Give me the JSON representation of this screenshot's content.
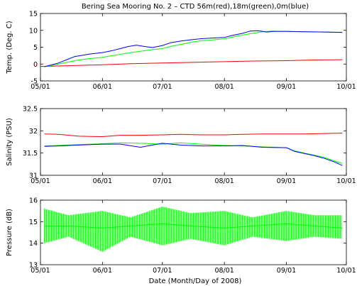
{
  "chart_data": [
    {
      "type": "line",
      "title": "Bering Sea Mooring No. 2 – CTD 56m(red),18m(green),0m(blue)",
      "ylabel": "Temp. (Deg. C)",
      "xlabel": "",
      "xlim": [
        "05/01",
        "10/01"
      ],
      "ylim": [
        -5,
        15
      ],
      "x_ticks": [
        "05/01",
        "06/01",
        "07/01",
        "08/01",
        "09/01",
        "10/01"
      ],
      "y_ticks": [
        "-5",
        "0",
        "5",
        "10",
        "15"
      ],
      "grid": false,
      "series": [
        {
          "color": "#ff0000",
          "x": [
            "05/01",
            "05/15",
            "06/01",
            "06/15",
            "07/01",
            "07/15",
            "08/01",
            "08/15",
            "09/01",
            "09/15",
            "09/29"
          ],
          "y": [
            -0.7,
            -0.5,
            -0.2,
            0.1,
            0.3,
            0.5,
            0.7,
            0.9,
            1.0,
            1.2,
            1.3
          ]
        },
        {
          "color": "#00ff00",
          "x": [
            "05/03",
            "05/10",
            "05/15",
            "05/20",
            "05/25",
            "06/01",
            "06/05",
            "06/10",
            "06/15",
            "06/20",
            "06/25",
            "07/01",
            "07/05",
            "07/10",
            "07/15",
            "07/20",
            "07/25",
            "08/01",
            "08/05",
            "08/10",
            "08/15",
            "08/20",
            "08/25",
            "09/01",
            "09/10",
            "09/20",
            "09/29"
          ],
          "y": [
            -0.8,
            0.0,
            0.6,
            1.2,
            1.6,
            2.0,
            2.4,
            2.9,
            3.4,
            3.8,
            4.2,
            4.6,
            5.2,
            5.8,
            6.4,
            6.9,
            7.1,
            7.5,
            8.0,
            8.6,
            9.1,
            9.6,
            9.8,
            9.7,
            9.6,
            9.5,
            9.4
          ]
        },
        {
          "color": "#0000ff",
          "x": [
            "05/03",
            "05/10",
            "05/15",
            "05/18",
            "05/22",
            "05/26",
            "06/01",
            "06/06",
            "06/10",
            "06/14",
            "06/18",
            "06/22",
            "06/26",
            "07/01",
            "07/05",
            "07/10",
            "07/15",
            "07/20",
            "07/25",
            "08/01",
            "08/05",
            "08/10",
            "08/14",
            "08/18",
            "08/22",
            "08/26",
            "09/01",
            "09/10",
            "09/20",
            "09/29"
          ],
          "y": [
            -0.8,
            0.3,
            1.5,
            2.2,
            2.6,
            3.0,
            3.4,
            4.0,
            4.6,
            5.2,
            5.6,
            5.2,
            4.9,
            5.5,
            6.3,
            6.8,
            7.2,
            7.5,
            7.7,
            7.9,
            8.5,
            9.1,
            9.8,
            9.9,
            9.5,
            9.7,
            9.7,
            9.6,
            9.5,
            9.4
          ]
        }
      ]
    },
    {
      "type": "line",
      "ylabel": "Salinity (PSU)",
      "xlabel": "",
      "xlim": [
        "05/01",
        "10/01"
      ],
      "ylim": [
        31,
        32.5
      ],
      "x_ticks": [
        "05/01",
        "06/01",
        "07/01",
        "08/01",
        "09/01",
        "10/01"
      ],
      "y_ticks": [
        "31",
        "31.5",
        "32",
        "32.5"
      ],
      "grid": false,
      "series": [
        {
          "color": "#ff0000",
          "x": [
            "05/03",
            "05/10",
            "05/20",
            "06/01",
            "06/10",
            "06/20",
            "07/01",
            "07/10",
            "07/20",
            "08/01",
            "08/10",
            "08/20",
            "09/01",
            "09/10",
            "09/20",
            "09/29"
          ],
          "y": [
            31.93,
            31.92,
            31.88,
            31.87,
            31.9,
            31.9,
            31.91,
            31.92,
            31.91,
            31.91,
            31.92,
            31.93,
            31.93,
            31.93,
            31.94,
            31.95
          ]
        },
        {
          "color": "#00ff00",
          "x": [
            "05/03",
            "05/10",
            "05/20",
            "06/01",
            "06/10",
            "06/20",
            "07/01",
            "07/10",
            "07/20",
            "08/01",
            "08/10",
            "08/20",
            "09/01",
            "09/05",
            "09/10",
            "09/15",
            "09/20",
            "09/25",
            "09/29"
          ],
          "y": [
            31.66,
            31.67,
            31.69,
            31.71,
            31.73,
            31.72,
            31.7,
            31.73,
            31.7,
            31.67,
            31.66,
            31.64,
            31.62,
            31.55,
            31.5,
            31.45,
            31.4,
            31.32,
            31.27
          ]
        },
        {
          "color": "#0000ff",
          "x": [
            "05/03",
            "05/10",
            "05/20",
            "06/01",
            "06/10",
            "06/20",
            "07/01",
            "07/10",
            "07/20",
            "08/01",
            "08/10",
            "08/20",
            "09/01",
            "09/05",
            "09/10",
            "09/15",
            "09/20",
            "09/25",
            "09/29"
          ],
          "y": [
            31.65,
            31.66,
            31.68,
            31.7,
            31.7,
            31.63,
            31.72,
            31.68,
            31.66,
            31.66,
            31.67,
            31.63,
            31.62,
            31.54,
            31.49,
            31.44,
            31.38,
            31.3,
            31.22
          ]
        }
      ]
    },
    {
      "type": "line",
      "ylabel": "Pressure (dB)",
      "xlabel": "Date (Month/Day of 2008)",
      "xlim": [
        "05/01",
        "10/01"
      ],
      "ylim": [
        13,
        16
      ],
      "x_ticks": [
        "05/01",
        "06/01",
        "07/01",
        "08/01",
        "09/01",
        "10/01"
      ],
      "y_ticks": [
        "13",
        "14",
        "15",
        "16"
      ],
      "grid": false,
      "series": [
        {
          "color": "#00ff00",
          "x": [
            "05/03",
            "05/15",
            "06/01",
            "06/15",
            "07/01",
            "07/15",
            "08/01",
            "08/15",
            "09/01",
            "09/15",
            "09/29"
          ],
          "y": [
            14.8,
            14.8,
            14.7,
            14.8,
            14.9,
            14.8,
            14.7,
            14.8,
            14.9,
            14.8,
            14.7
          ],
          "range": [
            [
              14.0,
              15.6
            ],
            [
              14.3,
              15.3
            ],
            [
              13.6,
              15.5
            ],
            [
              14.3,
              15.2
            ],
            [
              13.9,
              15.7
            ],
            [
              14.2,
              15.4
            ],
            [
              13.9,
              15.5
            ],
            [
              14.3,
              15.2
            ],
            [
              14.1,
              15.5
            ],
            [
              14.3,
              15.3
            ],
            [
              14.2,
              15.3
            ]
          ]
        }
      ]
    }
  ]
}
